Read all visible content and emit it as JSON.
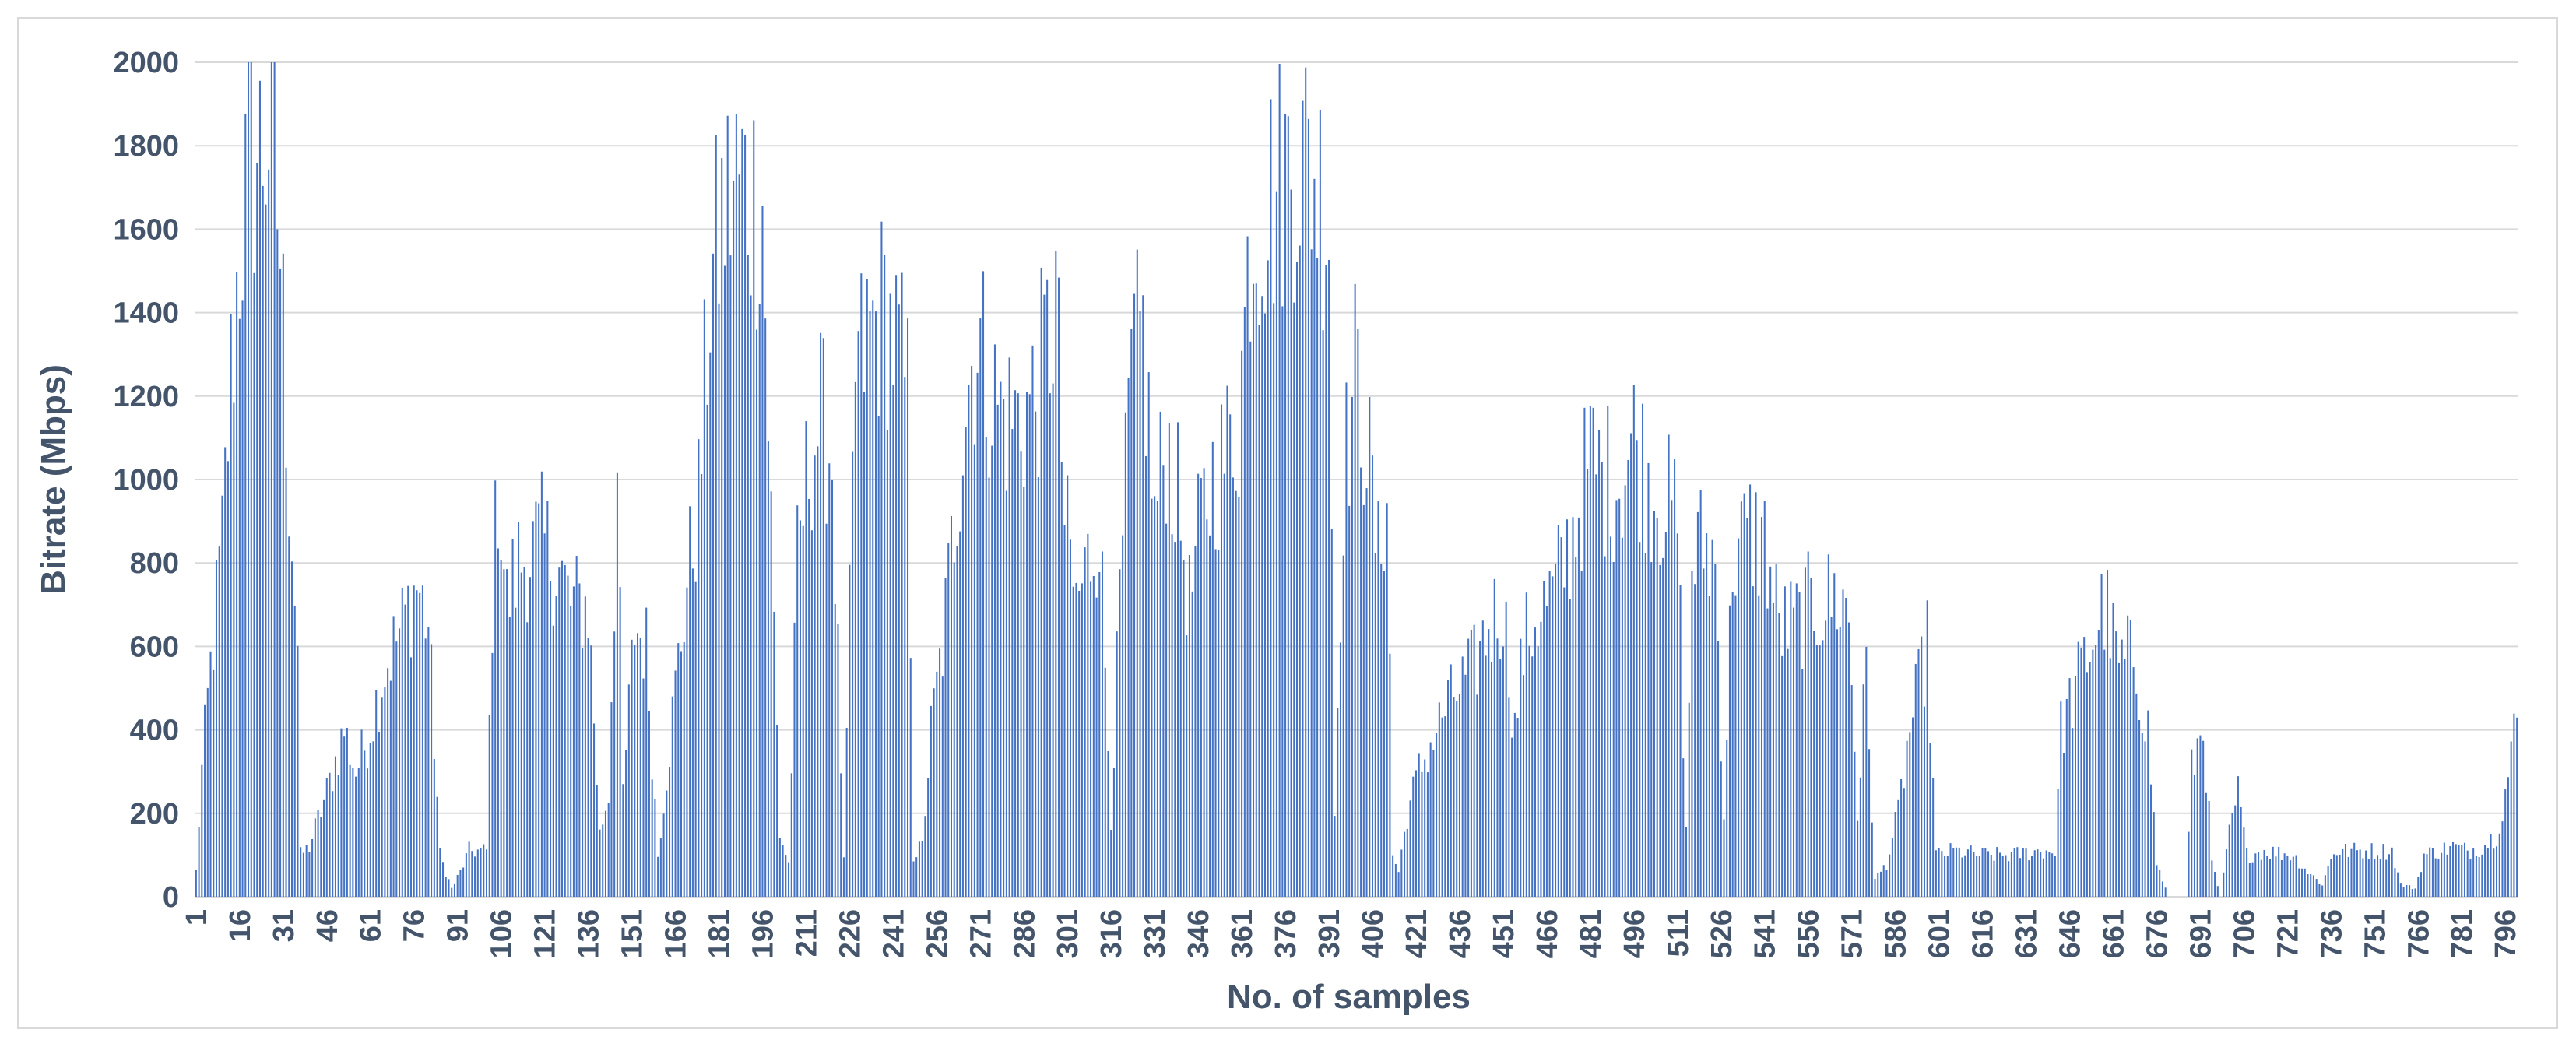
{
  "chart_data": {
    "type": "bar",
    "title": "",
    "xlabel": "No. of samples",
    "ylabel": "Bitrate (Mbps)",
    "ylim": [
      0,
      2000
    ],
    "yticks": [
      0,
      200,
      400,
      600,
      800,
      1000,
      1200,
      1400,
      1600,
      1800,
      2000
    ],
    "xtick_labels": [
      "1",
      "16",
      "31",
      "46",
      "61",
      "76",
      "91",
      "106",
      "121",
      "136",
      "151",
      "166",
      "181",
      "196",
      "211",
      "226",
      "241",
      "256",
      "271",
      "286",
      "301",
      "316",
      "331",
      "346",
      "361",
      "376",
      "391",
      "406",
      "421",
      "436",
      "451",
      "466",
      "481",
      "496",
      "511",
      "526",
      "541",
      "556",
      "571",
      "586",
      "601",
      "616",
      "631",
      "646",
      "661",
      "676",
      "691",
      "706",
      "721",
      "736",
      "751",
      "766",
      "781",
      "796"
    ],
    "sample_count": 800,
    "grid": true,
    "legend": "none",
    "bar_color": "#4472c4",
    "profile_points": [
      [
        1,
        60
      ],
      [
        3,
        300
      ],
      [
        6,
        550
      ],
      [
        10,
        850
      ],
      [
        13,
        1250
      ],
      [
        16,
        1550
      ],
      [
        19,
        1750
      ],
      [
        24,
        1800
      ],
      [
        27,
        1860
      ],
      [
        30,
        1550
      ],
      [
        33,
        1000
      ],
      [
        36,
        600
      ],
      [
        37,
        100
      ],
      [
        40,
        120
      ],
      [
        46,
        250
      ],
      [
        52,
        400
      ],
      [
        56,
        300
      ],
      [
        60,
        380
      ],
      [
        66,
        550
      ],
      [
        72,
        650
      ],
      [
        77,
        750
      ],
      [
        81,
        650
      ],
      [
        85,
        100
      ],
      [
        89,
        20
      ],
      [
        92,
        60
      ],
      [
        95,
        110
      ],
      [
        101,
        110
      ],
      [
        103,
        700
      ],
      [
        105,
        1000
      ],
      [
        108,
        700
      ],
      [
        112,
        800
      ],
      [
        120,
        850
      ],
      [
        125,
        800
      ],
      [
        130,
        700
      ],
      [
        136,
        700
      ],
      [
        140,
        150
      ],
      [
        143,
        250
      ],
      [
        146,
        1000
      ],
      [
        148,
        250
      ],
      [
        152,
        650
      ],
      [
        156,
        600
      ],
      [
        160,
        100
      ],
      [
        166,
        500
      ],
      [
        170,
        750
      ],
      [
        174,
        950
      ],
      [
        178,
        1450
      ],
      [
        182,
        1620
      ],
      [
        187,
        1720
      ],
      [
        196,
        1660
      ],
      [
        199,
        900
      ],
      [
        202,
        150
      ],
      [
        205,
        80
      ],
      [
        208,
        800
      ],
      [
        212,
        1050
      ],
      [
        216,
        1150
      ],
      [
        220,
        1050
      ],
      [
        224,
        80
      ],
      [
        228,
        1250
      ],
      [
        233,
        1350
      ],
      [
        238,
        1400
      ],
      [
        243,
        1300
      ],
      [
        246,
        1200
      ],
      [
        248,
        100
      ],
      [
        251,
        120
      ],
      [
        254,
        400
      ],
      [
        258,
        600
      ],
      [
        262,
        900
      ],
      [
        266,
        1200
      ],
      [
        270,
        1350
      ],
      [
        275,
        1200
      ],
      [
        280,
        1150
      ],
      [
        285,
        1150
      ],
      [
        290,
        1200
      ],
      [
        295,
        1350
      ],
      [
        297,
        1450
      ],
      [
        300,
        900
      ],
      [
        304,
        700
      ],
      [
        308,
        800
      ],
      [
        312,
        900
      ],
      [
        316,
        200
      ],
      [
        319,
        700
      ],
      [
        323,
        1250
      ],
      [
        327,
        1350
      ],
      [
        331,
        900
      ],
      [
        335,
        1100
      ],
      [
        339,
        950
      ],
      [
        343,
        700
      ],
      [
        347,
        900
      ],
      [
        351,
        1000
      ],
      [
        355,
        1050
      ],
      [
        360,
        1150
      ],
      [
        364,
        1600
      ],
      [
        368,
        1650
      ],
      [
        373,
        1700
      ],
      [
        380,
        1780
      ],
      [
        385,
        1750
      ],
      [
        391,
        1650
      ],
      [
        393,
        200
      ],
      [
        396,
        1000
      ],
      [
        400,
        1250
      ],
      [
        404,
        1100
      ],
      [
        408,
        800
      ],
      [
        411,
        1000
      ],
      [
        413,
        100
      ],
      [
        415,
        60
      ],
      [
        418,
        200
      ],
      [
        422,
        300
      ],
      [
        427,
        380
      ],
      [
        431,
        450
      ],
      [
        436,
        500
      ],
      [
        441,
        550
      ],
      [
        446,
        650
      ],
      [
        451,
        700
      ],
      [
        455,
        400
      ],
      [
        458,
        600
      ],
      [
        463,
        680
      ],
      [
        468,
        720
      ],
      [
        472,
        800
      ],
      [
        476,
        900
      ],
      [
        481,
        1050
      ],
      [
        486,
        1000
      ],
      [
        491,
        1000
      ],
      [
        496,
        1100
      ],
      [
        501,
        1000
      ],
      [
        506,
        950
      ],
      [
        511,
        900
      ],
      [
        514,
        150
      ],
      [
        516,
        800
      ],
      [
        520,
        850
      ],
      [
        524,
        800
      ],
      [
        527,
        200
      ],
      [
        530,
        820
      ],
      [
        536,
        870
      ],
      [
        541,
        850
      ],
      [
        546,
        650
      ],
      [
        551,
        650
      ],
      [
        556,
        690
      ],
      [
        561,
        700
      ],
      [
        566,
        720
      ],
      [
        570,
        680
      ],
      [
        573,
        200
      ],
      [
        576,
        550
      ],
      [
        579,
        40
      ],
      [
        583,
        80
      ],
      [
        587,
        200
      ],
      [
        591,
        400
      ],
      [
        594,
        500
      ],
      [
        597,
        600
      ],
      [
        600,
        100
      ],
      [
        606,
        110
      ],
      [
        616,
        100
      ],
      [
        626,
        100
      ],
      [
        636,
        110
      ],
      [
        641,
        110
      ],
      [
        643,
        400
      ],
      [
        648,
        500
      ],
      [
        653,
        600
      ],
      [
        658,
        700
      ],
      [
        663,
        550
      ],
      [
        668,
        580
      ],
      [
        673,
        400
      ],
      [
        676,
        80
      ],
      [
        680,
        0
      ],
      [
        686,
        0
      ],
      [
        688,
        300
      ],
      [
        692,
        420
      ],
      [
        695,
        80
      ],
      [
        698,
        0
      ],
      [
        701,
        150
      ],
      [
        704,
        250
      ],
      [
        707,
        100
      ],
      [
        713,
        110
      ],
      [
        723,
        100
      ],
      [
        728,
        60
      ],
      [
        733,
        30
      ],
      [
        737,
        110
      ],
      [
        747,
        110
      ],
      [
        757,
        110
      ],
      [
        760,
        30
      ],
      [
        765,
        20
      ],
      [
        768,
        100
      ],
      [
        773,
        110
      ],
      [
        778,
        120
      ],
      [
        783,
        110
      ],
      [
        788,
        120
      ],
      [
        793,
        150
      ],
      [
        796,
        250
      ],
      [
        800,
        430
      ]
    ]
  }
}
